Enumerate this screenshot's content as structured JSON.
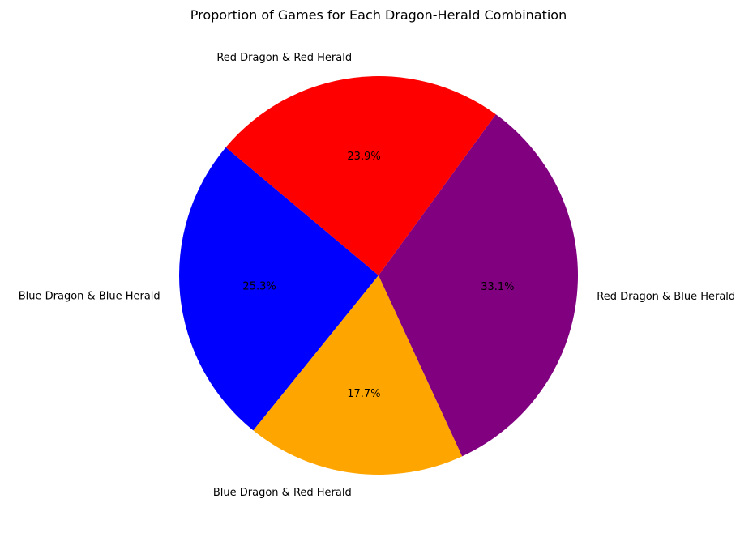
{
  "chart_data": {
    "type": "pie",
    "title": "Proportion of Games for Each Dragon-Herald Combination",
    "start_angle_deg": 140,
    "direction": "counterclockwise",
    "slices": [
      {
        "label": "Blue Dragon & Blue Herald",
        "value": 25.3,
        "pct_text": "25.3%",
        "color": "#0000ff"
      },
      {
        "label": "Blue Dragon & Red Herald",
        "value": 17.7,
        "pct_text": "17.7%",
        "color": "#ffa500"
      },
      {
        "label": "Red Dragon & Blue Herald",
        "value": 33.1,
        "pct_text": "33.1%",
        "color": "#800080"
      },
      {
        "label": "Red Dragon & Red Herald",
        "value": 23.9,
        "pct_text": "23.9%",
        "color": "#ff0000"
      }
    ]
  }
}
